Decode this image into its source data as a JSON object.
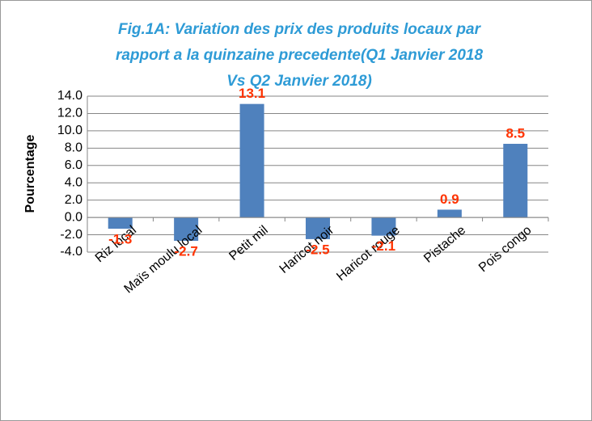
{
  "chart_data": {
    "type": "bar",
    "title": [
      "Fig.1A: Variation des prix des produits locaux par",
      "rapport a la quinzaine precedente(Q1 Janvier 2018",
      "Vs Q2 Janvier 2018)"
    ],
    "y_label": "Pourcentage",
    "categories": [
      "Riz local",
      "Maïs moulu  local",
      "Petit mil",
      "Haricot noir",
      "Haricot rouge",
      "Pistache",
      "Pois congo"
    ],
    "values": [
      -1.3,
      -2.7,
      13.1,
      -2.5,
      -2.1,
      0.9,
      8.5
    ],
    "color": "#4f81bd",
    "ylim": [
      -4,
      14
    ],
    "yticks": [
      {
        "value": -4,
        "label": "-4.0"
      },
      {
        "value": -2,
        "label": "-2.0"
      },
      {
        "value": 0,
        "label": "0.0"
      },
      {
        "value": 2,
        "label": "2.0"
      },
      {
        "value": 4,
        "label": "4.0"
      },
      {
        "value": 6,
        "label": "6.0"
      },
      {
        "value": 8,
        "label": "8.0"
      },
      {
        "value": 10,
        "label": "10.0"
      },
      {
        "value": 12,
        "label": "12.0"
      },
      {
        "value": 14,
        "label": "14.0"
      }
    ],
    "grid": true
  }
}
